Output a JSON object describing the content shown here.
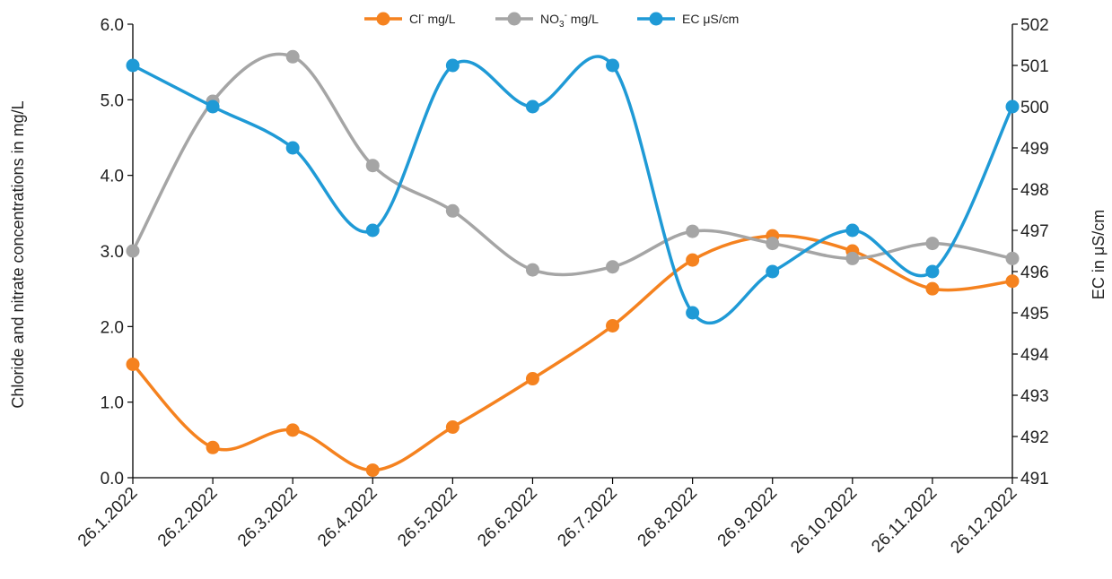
{
  "chart_data": {
    "type": "line",
    "x": [
      "26.1.2022",
      "26.2.2022",
      "26.3.2022",
      "26.4.2022",
      "26.5.2022",
      "26.6.2022",
      "26.7.2022",
      "26.8.2022",
      "26.9.2022",
      "26.10.2022",
      "26.11.2022",
      "26.12.2022"
    ],
    "series": [
      {
        "name_main": "Cl",
        "name_sup": "-",
        "name_sub": "",
        "name_rest": " mg/L",
        "axis": "left",
        "color": "#f5821f",
        "values": [
          1.5,
          0.4,
          0.63,
          0.1,
          0.67,
          1.31,
          2.01,
          2.88,
          3.2,
          3.0,
          2.5,
          2.6
        ]
      },
      {
        "name_main": "NO",
        "name_sub": "3",
        "name_sup": "-",
        "name_rest": " mg/L",
        "axis": "left",
        "color": "#a5a5a5",
        "values": [
          3.0,
          4.98,
          5.57,
          4.13,
          3.53,
          2.75,
          2.79,
          3.26,
          3.1,
          2.9,
          3.1,
          2.9
        ]
      },
      {
        "name_main": "EC ",
        "name_sub": "",
        "name_sup": "",
        "name_rest": "μS/cm",
        "axis": "right",
        "color": "#1f9ad6",
        "values": [
          501,
          500,
          499,
          497,
          501,
          500,
          501,
          495,
          496,
          497,
          496,
          500
        ]
      }
    ],
    "ylabel": "Chloride and nitrate concentrations in mg/L",
    "y2label": "EC in μS/cm",
    "ylim": [
      0,
      6
    ],
    "y2lim": [
      491,
      502
    ],
    "yticks": [
      "0.0",
      "1.0",
      "2.0",
      "3.0",
      "4.0",
      "5.0",
      "6.0"
    ],
    "y2ticks": [
      "491",
      "492",
      "493",
      "494",
      "495",
      "496",
      "497",
      "498",
      "499",
      "500",
      "501",
      "502"
    ],
    "grid": false,
    "legend_position": "top"
  }
}
